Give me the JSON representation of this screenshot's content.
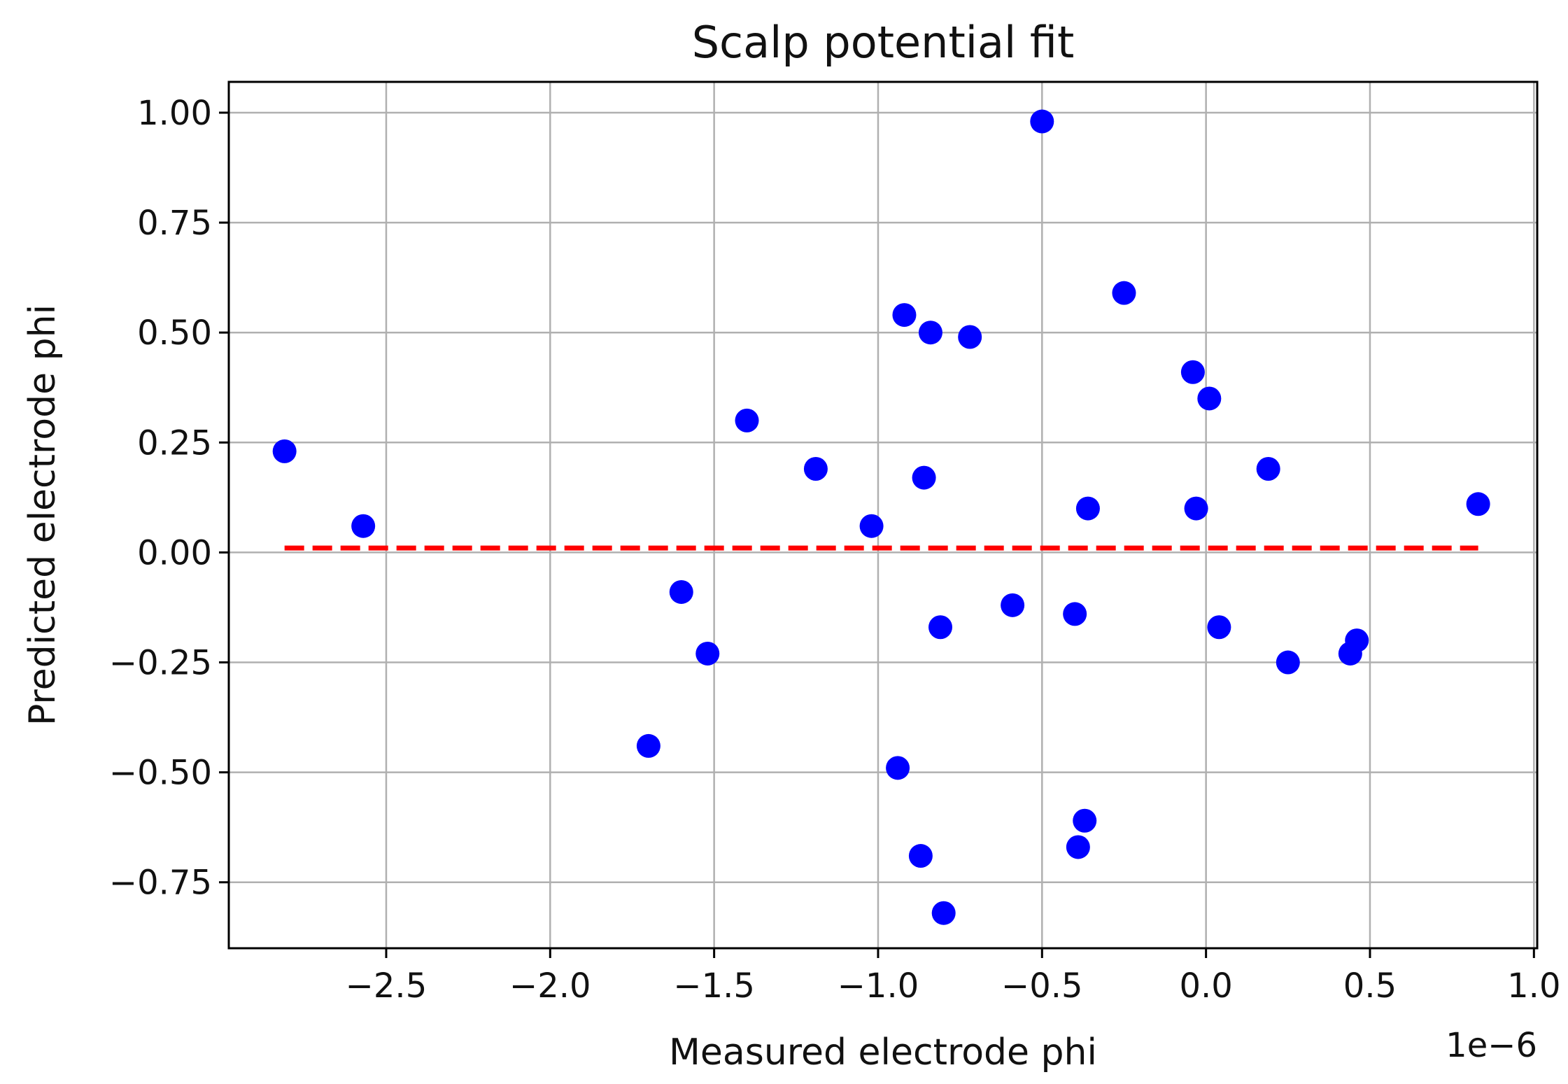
{
  "chart_data": {
    "type": "scatter",
    "title": "Scalp potential fit",
    "xlabel": "Measured electrode phi",
    "ylabel": "Predicted electrode phi",
    "x_offset_text": "1e−6",
    "xlim": [
      -2.98e-06,
      1.01e-06
    ],
    "ylim": [
      -0.9,
      1.07
    ],
    "x_ticks": [
      {
        "value": -2.5e-06,
        "label": "−2.5"
      },
      {
        "value": -2e-06,
        "label": "−2.0"
      },
      {
        "value": -1.5e-06,
        "label": "−1.5"
      },
      {
        "value": -1e-06,
        "label": "−1.0"
      },
      {
        "value": -5e-07,
        "label": "−0.5"
      },
      {
        "value": 0.0,
        "label": "0.0"
      },
      {
        "value": 5e-07,
        "label": "0.5"
      },
      {
        "value": 1e-06,
        "label": "1.0"
      }
    ],
    "y_ticks": [
      {
        "value": 1.0,
        "label": "1.00"
      },
      {
        "value": 0.75,
        "label": "0.75"
      },
      {
        "value": 0.5,
        "label": "0.50"
      },
      {
        "value": 0.25,
        "label": "0.25"
      },
      {
        "value": 0.0,
        "label": "0.00"
      },
      {
        "value": -0.25,
        "label": "−0.25"
      },
      {
        "value": -0.5,
        "label": "−0.50"
      },
      {
        "value": -0.75,
        "label": "−0.75"
      }
    ],
    "grid": true,
    "marker_color": "#0000ff",
    "fit_line": {
      "x": [
        -2.81e-06,
        8.3e-07
      ],
      "y": [
        0.01,
        0.01
      ],
      "color": "#ff0000",
      "style": "dashed"
    },
    "points": [
      {
        "x": -2.81e-06,
        "y": 0.23
      },
      {
        "x": -2.57e-06,
        "y": 0.06
      },
      {
        "x": -1.7e-06,
        "y": -0.44
      },
      {
        "x": -1.6e-06,
        "y": -0.09
      },
      {
        "x": -1.52e-06,
        "y": -0.23
      },
      {
        "x": -1.4e-06,
        "y": 0.3
      },
      {
        "x": -1.19e-06,
        "y": 0.19
      },
      {
        "x": -1.02e-06,
        "y": 0.06
      },
      {
        "x": -9.2e-07,
        "y": 0.54
      },
      {
        "x": -9.4e-07,
        "y": -0.49
      },
      {
        "x": -8.6e-07,
        "y": 0.17
      },
      {
        "x": -8.7e-07,
        "y": -0.69
      },
      {
        "x": -8.4e-07,
        "y": 0.5
      },
      {
        "x": -8.1e-07,
        "y": -0.17
      },
      {
        "x": -8e-07,
        "y": -0.82
      },
      {
        "x": -7.2e-07,
        "y": 0.49
      },
      {
        "x": -5.9e-07,
        "y": -0.12
      },
      {
        "x": -5e-07,
        "y": 0.98
      },
      {
        "x": -4e-07,
        "y": -0.14
      },
      {
        "x": -3.9e-07,
        "y": -0.67
      },
      {
        "x": -3.7e-07,
        "y": -0.61
      },
      {
        "x": -3.6e-07,
        "y": 0.1
      },
      {
        "x": -2.5e-07,
        "y": 0.59
      },
      {
        "x": -4e-08,
        "y": 0.41
      },
      {
        "x": -3e-08,
        "y": 0.1
      },
      {
        "x": 1e-08,
        "y": 0.35
      },
      {
        "x": 4e-08,
        "y": -0.17
      },
      {
        "x": 1.9e-07,
        "y": 0.19
      },
      {
        "x": 2.5e-07,
        "y": -0.25
      },
      {
        "x": 4.4e-07,
        "y": -0.23
      },
      {
        "x": 4.6e-07,
        "y": -0.2
      },
      {
        "x": 8.3e-07,
        "y": 0.11
      }
    ]
  }
}
